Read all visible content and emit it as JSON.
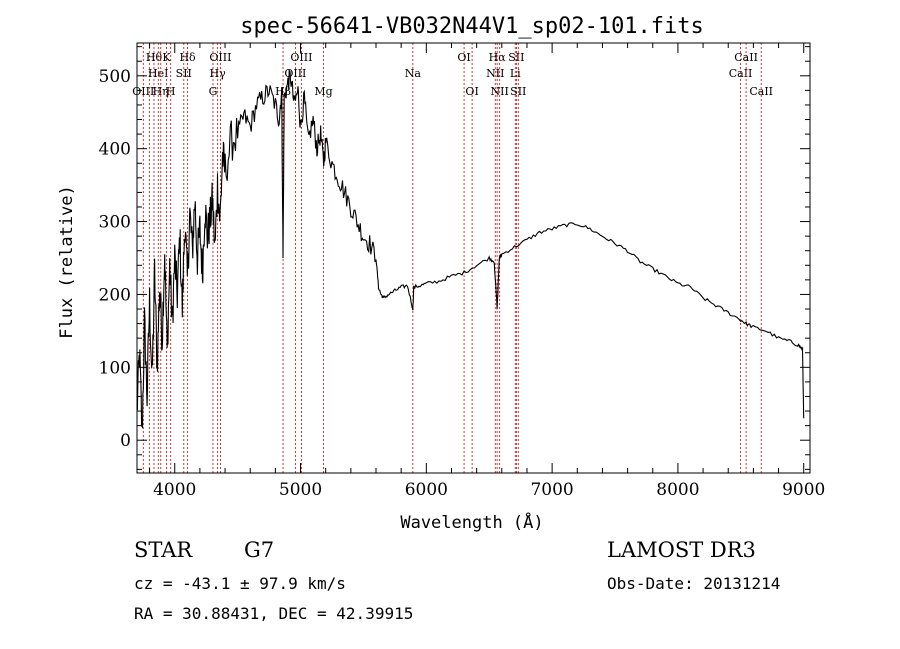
{
  "chart_data": {
    "type": "line",
    "title": "spec-56641-VB032N44V1_sp02-101.fits",
    "xlabel": "Wavelength (Å)",
    "ylabel": "Flux (relative)",
    "xlim": [
      3700,
      9050
    ],
    "ylim": [
      -45,
      545
    ],
    "xticks": [
      4000,
      5000,
      6000,
      7000,
      8000,
      9000
    ],
    "yticks": [
      0,
      100,
      200,
      300,
      400,
      500
    ],
    "colors": {
      "spectrum": "#000000",
      "lines": "#cc0000",
      "axes": "#000000"
    },
    "spectrum": {
      "x": [
        3700,
        3720,
        3740,
        3760,
        3780,
        3800,
        3820,
        3840,
        3860,
        3880,
        3900,
        3920,
        3940,
        3960,
        3980,
        4000,
        4020,
        4040,
        4060,
        4080,
        4100,
        4120,
        4140,
        4160,
        4180,
        4200,
        4220,
        4240,
        4260,
        4280,
        4300,
        4320,
        4340,
        4360,
        4380,
        4400,
        4450,
        4500,
        4550,
        4600,
        4650,
        4700,
        4750,
        4800,
        4830,
        4850,
        4861,
        4870,
        4900,
        4920,
        4950,
        4980,
        5000,
        5030,
        5060,
        5100,
        5130,
        5160,
        5183,
        5200,
        5250,
        5300,
        5350,
        5400,
        5450,
        5500,
        5550,
        5600,
        5620,
        5640,
        5660,
        5700,
        5750,
        5800,
        5850,
        5893,
        5900,
        5950,
        6000,
        6100,
        6200,
        6300,
        6400,
        6500,
        6540,
        6563,
        6580,
        6600,
        6700,
        6800,
        6900,
        7000,
        7100,
        7200,
        7300,
        7400,
        7500,
        7600,
        7700,
        7800,
        7900,
        8000,
        8100,
        8200,
        8300,
        8400,
        8500,
        8542,
        8600,
        8700,
        8800,
        8900,
        8960,
        8990,
        9000
      ],
      "y": [
        40,
        120,
        10,
        160,
        60,
        190,
        80,
        230,
        100,
        210,
        140,
        260,
        120,
        240,
        160,
        250,
        200,
        280,
        180,
        300,
        220,
        310,
        260,
        330,
        250,
        290,
        230,
        320,
        280,
        300,
        330,
        260,
        350,
        300,
        390,
        370,
        410,
        420,
        445,
        430,
        460,
        470,
        480,
        460,
        440,
        480,
        250,
        470,
        490,
        500,
        460,
        480,
        430,
        470,
        410,
        440,
        400,
        420,
        380,
        410,
        380,
        360,
        340,
        320,
        300,
        280,
        270,
        250,
        210,
        200,
        195,
        200,
        205,
        210,
        212,
        180,
        210,
        212,
        215,
        218,
        225,
        230,
        240,
        250,
        245,
        180,
        250,
        255,
        265,
        275,
        285,
        290,
        295,
        297,
        290,
        280,
        270,
        260,
        245,
        235,
        225,
        215,
        210,
        195,
        185,
        175,
        165,
        160,
        155,
        150,
        140,
        135,
        130,
        125,
        30
      ]
    },
    "line_markers": [
      {
        "wl": 3750,
        "label": "OIII",
        "row": 3
      },
      {
        "wl": 3798,
        "label": "",
        "row": 0
      },
      {
        "wl": 3835,
        "label": "Hθ",
        "row": 1
      },
      {
        "wl": 3869,
        "label": "HeI",
        "row": 2
      },
      {
        "wl": 3889,
        "label": "Hη",
        "row": 3
      },
      {
        "wl": 3934,
        "label": "K",
        "row": 1
      },
      {
        "wl": 3968,
        "label": "H",
        "row": 3
      },
      {
        "wl": 4072,
        "label": "SII",
        "row": 2
      },
      {
        "wl": 4102,
        "label": "Hδ",
        "row": 1
      },
      {
        "wl": 4304,
        "label": "G",
        "row": 3
      },
      {
        "wl": 4341,
        "label": "Hγ",
        "row": 2
      },
      {
        "wl": 4363,
        "label": "OIII",
        "row": 1
      },
      {
        "wl": 4861,
        "label": "Hβ",
        "row": 3
      },
      {
        "wl": 4959,
        "label": "OIII",
        "row": 2
      },
      {
        "wl": 5007,
        "label": "OIII",
        "row": 1
      },
      {
        "wl": 5183,
        "label": "Mg",
        "row": 3
      },
      {
        "wl": 5893,
        "label": "Na",
        "row": 2
      },
      {
        "wl": 6300,
        "label": "OI",
        "row": 1
      },
      {
        "wl": 6364,
        "label": "OI",
        "row": 3
      },
      {
        "wl": 6548,
        "label": "NII",
        "row": 2
      },
      {
        "wl": 6563,
        "label": "Hα",
        "row": 1
      },
      {
        "wl": 6583,
        "label": "NII",
        "row": 3
      },
      {
        "wl": 6707,
        "label": "Li",
        "row": 2
      },
      {
        "wl": 6716,
        "label": "SII",
        "row": 1
      },
      {
        "wl": 6731,
        "label": "SII",
        "row": 3
      },
      {
        "wl": 8498,
        "label": "CaII",
        "row": 2
      },
      {
        "wl": 8542,
        "label": "CaII",
        "row": 1
      },
      {
        "wl": 8662,
        "label": "CaII",
        "row": 3
      }
    ]
  },
  "info": {
    "class_label": "STAR",
    "subclass": "G7",
    "survey": "LAMOST DR3",
    "redshift_text": "cz = -43.1 ± 97.9 km/s",
    "obs_date": "Obs-Date: 20131214",
    "coords": "RA =  30.88431, DEC =  42.39915"
  }
}
